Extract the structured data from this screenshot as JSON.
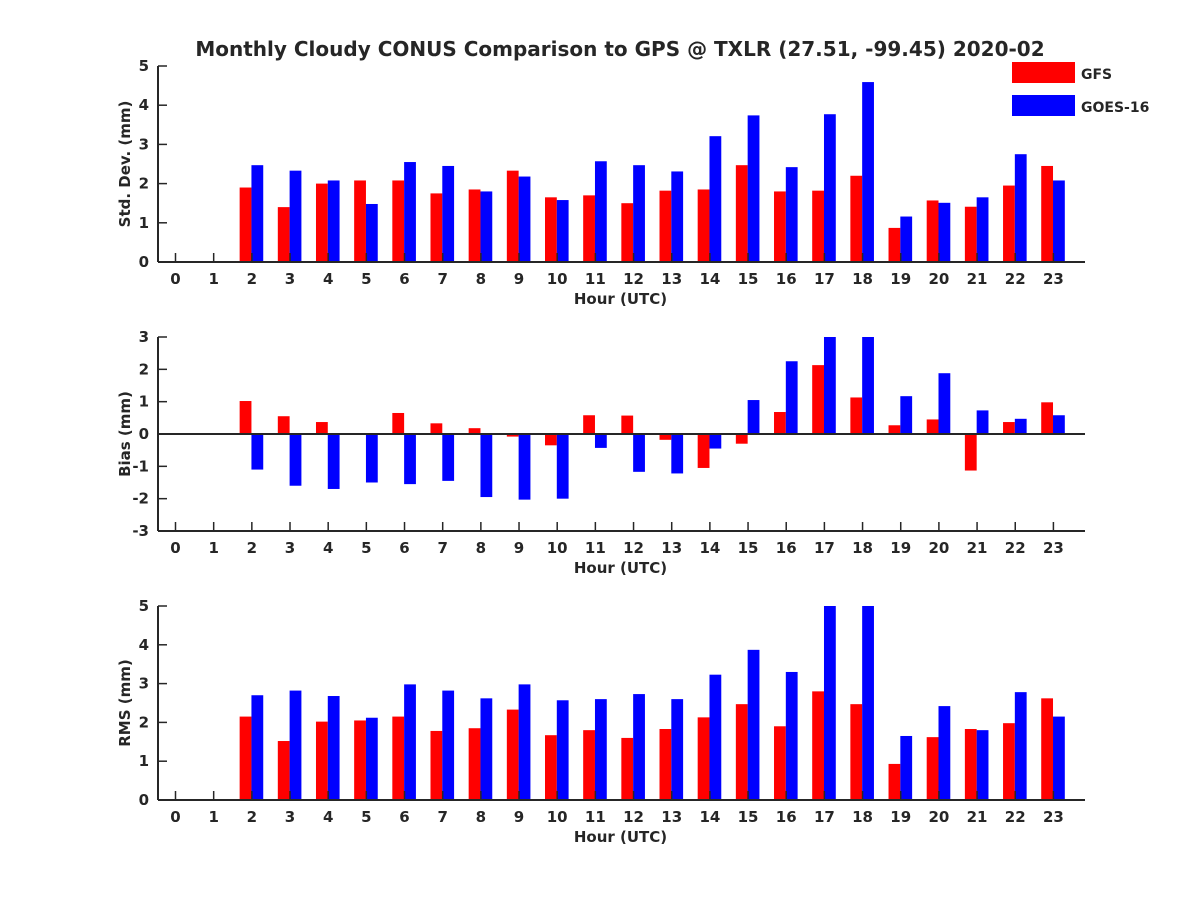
{
  "title": "Monthly Cloudy CONUS Comparison to GPS @ TXLR (27.51, -99.45) 2020-02",
  "legend": [
    {
      "name": "GFS",
      "color": "#ff0000"
    },
    {
      "name": "GOES-16",
      "color": "#0000ff"
    }
  ],
  "chart_data": [
    {
      "type": "bar",
      "id": "std",
      "xlabel": "Hour (UTC)",
      "ylabel": "Std. Dev. (mm)",
      "ylim": [
        0,
        5
      ],
      "yticks": [
        0,
        1,
        2,
        3,
        4,
        5
      ],
      "categories": [
        0,
        1,
        2,
        3,
        4,
        5,
        6,
        7,
        8,
        9,
        10,
        11,
        12,
        13,
        14,
        15,
        16,
        17,
        18,
        19,
        20,
        21,
        22,
        23
      ],
      "series": [
        {
          "name": "GFS",
          "color": "#ff0000",
          "values": [
            null,
            null,
            1.9,
            1.4,
            2.0,
            2.08,
            2.08,
            1.75,
            1.85,
            2.33,
            1.65,
            1.7,
            1.5,
            1.82,
            1.85,
            2.47,
            1.8,
            1.82,
            2.2,
            0.87,
            1.57,
            1.41,
            1.95,
            2.45
          ]
        },
        {
          "name": "GOES-16",
          "color": "#0000ff",
          "values": [
            null,
            null,
            2.47,
            2.33,
            2.08,
            1.48,
            2.55,
            2.45,
            1.8,
            2.18,
            1.58,
            2.57,
            2.47,
            2.31,
            3.21,
            3.74,
            2.42,
            3.77,
            4.59,
            1.16,
            1.51,
            1.65,
            2.75,
            2.08
          ]
        }
      ]
    },
    {
      "type": "bar",
      "id": "bias",
      "xlabel": "Hour (UTC)",
      "ylabel": "Bias (mm)",
      "ylim": [
        -3,
        3
      ],
      "yticks": [
        -3,
        -2,
        -1,
        0,
        1,
        2,
        3
      ],
      "categories": [
        0,
        1,
        2,
        3,
        4,
        5,
        6,
        7,
        8,
        9,
        10,
        11,
        12,
        13,
        14,
        15,
        16,
        17,
        18,
        19,
        20,
        21,
        22,
        23
      ],
      "series": [
        {
          "name": "GFS",
          "color": "#ff0000",
          "values": [
            null,
            null,
            1.02,
            0.55,
            0.37,
            0.0,
            0.65,
            0.33,
            0.18,
            -0.08,
            -0.35,
            0.58,
            0.57,
            -0.18,
            -1.05,
            -0.3,
            0.68,
            2.13,
            1.13,
            0.27,
            0.45,
            -1.13,
            0.37,
            0.98
          ]
        },
        {
          "name": "GOES-16",
          "color": "#0000ff",
          "values": [
            null,
            null,
            -1.1,
            -1.6,
            -1.7,
            -1.5,
            -1.55,
            -1.45,
            -1.95,
            -2.03,
            -2.0,
            -0.43,
            -1.17,
            -1.22,
            -0.45,
            1.05,
            2.25,
            3.0,
            3.0,
            1.17,
            1.88,
            0.73,
            0.47,
            0.58
          ]
        }
      ]
    },
    {
      "type": "bar",
      "id": "rms",
      "xlabel": "Hour (UTC)",
      "ylabel": "RMS (mm)",
      "ylim": [
        0,
        5
      ],
      "yticks": [
        0,
        1,
        2,
        3,
        4,
        5
      ],
      "categories": [
        0,
        1,
        2,
        3,
        4,
        5,
        6,
        7,
        8,
        9,
        10,
        11,
        12,
        13,
        14,
        15,
        16,
        17,
        18,
        19,
        20,
        21,
        22,
        23
      ],
      "series": [
        {
          "name": "GFS",
          "color": "#ff0000",
          "values": [
            null,
            null,
            2.15,
            1.52,
            2.02,
            2.05,
            2.15,
            1.78,
            1.85,
            2.33,
            1.67,
            1.8,
            1.6,
            1.83,
            2.13,
            2.47,
            1.9,
            2.8,
            2.47,
            0.93,
            1.62,
            1.83,
            1.98,
            2.62
          ]
        },
        {
          "name": "GOES-16",
          "color": "#0000ff",
          "values": [
            null,
            null,
            2.7,
            2.82,
            2.68,
            2.12,
            2.98,
            2.82,
            2.62,
            2.98,
            2.57,
            2.6,
            2.73,
            2.6,
            3.23,
            3.87,
            3.3,
            5.0,
            5.0,
            1.65,
            2.42,
            1.8,
            2.78,
            2.15
          ]
        }
      ]
    }
  ]
}
